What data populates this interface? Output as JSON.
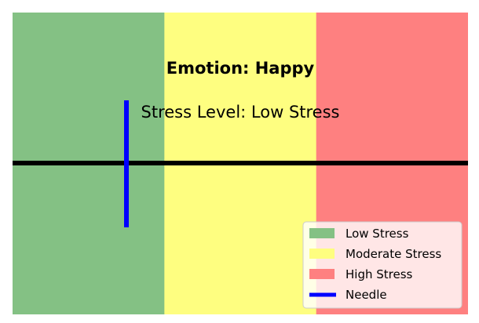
{
  "chart_data": {
    "type": "gauge",
    "title": "Emotion: Happy",
    "subtitle": "Stress Level: Low Stress",
    "zones": [
      {
        "name": "Low Stress",
        "color": "#84c184"
      },
      {
        "name": "Moderate Stress",
        "color": "#fefe80"
      },
      {
        "name": "High Stress",
        "color": "#fe8080"
      }
    ],
    "needle": {
      "name": "Needle",
      "color": "#0000ff",
      "position_fraction": 0.25
    },
    "baseline_color": "#000000",
    "legend_position": "lower-right"
  }
}
